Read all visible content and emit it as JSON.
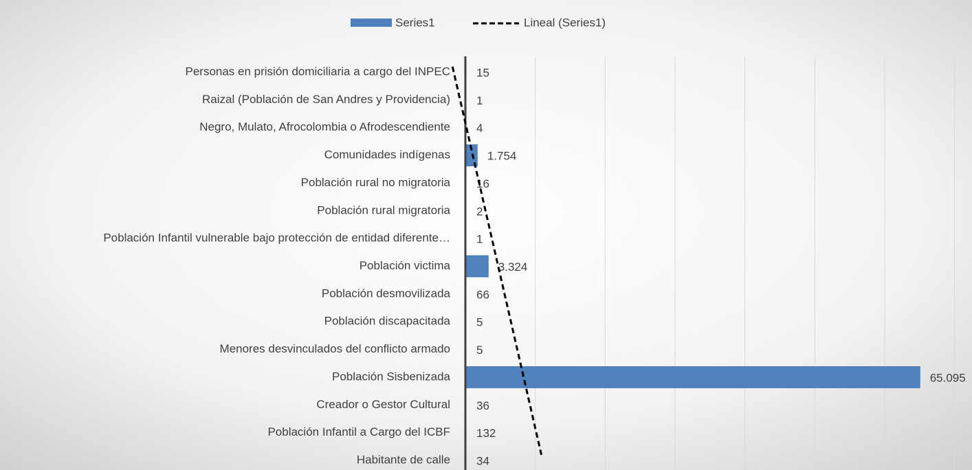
{
  "chart_data": {
    "type": "hbar",
    "categories": [
      "Personas en prisión domiciliaria a cargo del INPEC",
      "Raizal (Población de San Andres y Providencia)",
      "Negro, Mulato, Afrocolombia o Afrodescendiente",
      "Comunidades indígenas",
      "Población rural no migratoria",
      "Población rural migratoria",
      "Población Infantil vulnerable bajo protección de entidad diferente…",
      "Población victima",
      "Población desmovilizada",
      "Población discapacitada",
      "Menores desvinculados del conflicto armado",
      "Población Sisbenizada",
      "Creador o Gestor Cultural",
      "Población Infantil a Cargo del ICBF",
      "Habitante de calle"
    ],
    "series": [
      {
        "name": "Series1",
        "color": "#4f81bd",
        "values": [
          15,
          1,
          4,
          1754,
          16,
          2,
          1,
          3324,
          66,
          5,
          5,
          65095,
          36,
          132,
          34
        ],
        "value_labels": [
          "15",
          "1",
          "4",
          "1.754",
          "16",
          "2",
          "1",
          "3.324",
          "66",
          "5",
          "5",
          "65.095",
          "36",
          "132",
          "34"
        ]
      }
    ],
    "trendline": {
      "name": "Lineal (Series1)",
      "type": "linear",
      "color": "#000000"
    },
    "xlim": [
      0,
      72500
    ],
    "xticks": [
      0,
      10000,
      20000,
      30000,
      40000,
      50000,
      60000,
      70000
    ],
    "show_tick_labels": false,
    "grid": true
  }
}
